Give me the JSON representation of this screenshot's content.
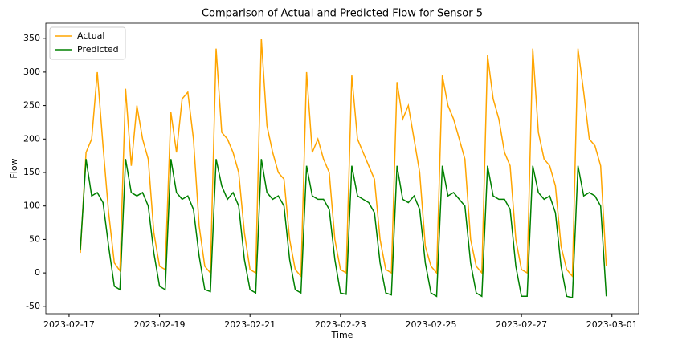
{
  "chart_data": {
    "type": "line",
    "title": "Comparison of Actual and Predicted Flow for Sensor 5",
    "xlabel": "Time",
    "ylabel": "Flow",
    "legend": "upper left",
    "x": [
      "2023-02-17 06:00",
      "2023-02-17 09:00",
      "2023-02-17 12:00",
      "2023-02-17 15:00",
      "2023-02-17 18:00",
      "2023-02-17 21:00",
      "2023-02-18 00:00",
      "2023-02-18 03:00",
      "2023-02-18 06:00",
      "2023-02-18 09:00",
      "2023-02-18 12:00",
      "2023-02-18 15:00",
      "2023-02-18 18:00",
      "2023-02-18 21:00",
      "2023-02-19 00:00",
      "2023-02-19 03:00",
      "2023-02-19 06:00",
      "2023-02-19 09:00",
      "2023-02-19 12:00",
      "2023-02-19 15:00",
      "2023-02-19 18:00",
      "2023-02-19 21:00",
      "2023-02-20 00:00",
      "2023-02-20 03:00",
      "2023-02-20 06:00",
      "2023-02-20 09:00",
      "2023-02-20 12:00",
      "2023-02-20 15:00",
      "2023-02-20 18:00",
      "2023-02-20 21:00",
      "2023-02-21 00:00",
      "2023-02-21 03:00",
      "2023-02-21 06:00",
      "2023-02-21 09:00",
      "2023-02-21 12:00",
      "2023-02-21 15:00",
      "2023-02-21 18:00",
      "2023-02-21 21:00",
      "2023-02-22 00:00",
      "2023-02-22 03:00",
      "2023-02-22 06:00",
      "2023-02-22 09:00",
      "2023-02-22 12:00",
      "2023-02-22 15:00",
      "2023-02-22 18:00",
      "2023-02-22 21:00",
      "2023-02-23 00:00",
      "2023-02-23 03:00",
      "2023-02-23 06:00",
      "2023-02-23 09:00",
      "2023-02-23 12:00",
      "2023-02-23 15:00",
      "2023-02-23 18:00",
      "2023-02-23 21:00",
      "2023-02-24 00:00",
      "2023-02-24 03:00",
      "2023-02-24 06:00",
      "2023-02-24 09:00",
      "2023-02-24 12:00",
      "2023-02-24 15:00",
      "2023-02-24 18:00",
      "2023-02-24 21:00",
      "2023-02-25 00:00",
      "2023-02-25 03:00",
      "2023-02-25 06:00",
      "2023-02-25 09:00",
      "2023-02-25 12:00",
      "2023-02-25 15:00",
      "2023-02-25 18:00",
      "2023-02-25 21:00",
      "2023-02-26 00:00",
      "2023-02-26 03:00",
      "2023-02-26 06:00",
      "2023-02-26 09:00",
      "2023-02-26 12:00",
      "2023-02-26 15:00",
      "2023-02-26 18:00",
      "2023-02-26 21:00",
      "2023-02-27 00:00",
      "2023-02-27 03:00",
      "2023-02-27 06:00",
      "2023-02-27 09:00",
      "2023-02-27 12:00",
      "2023-02-27 15:00",
      "2023-02-27 18:00",
      "2023-02-27 21:00",
      "2023-02-28 00:00",
      "2023-02-28 03:00",
      "2023-02-28 06:00",
      "2023-02-28 09:00",
      "2023-02-28 12:00",
      "2023-02-28 15:00",
      "2023-02-28 18:00",
      "2023-02-28 21:00"
    ],
    "series": [
      {
        "name": "Actual",
        "color": "orange",
        "values": [
          30,
          180,
          200,
          300,
          190,
          90,
          15,
          3,
          275,
          160,
          250,
          200,
          170,
          60,
          10,
          5,
          240,
          180,
          260,
          270,
          200,
          70,
          10,
          0,
          335,
          210,
          200,
          180,
          150,
          60,
          5,
          0,
          350,
          220,
          180,
          150,
          140,
          50,
          5,
          -5,
          300,
          180,
          200,
          170,
          150,
          50,
          5,
          0,
          295,
          200,
          180,
          160,
          140,
          50,
          5,
          0,
          285,
          230,
          250,
          200,
          150,
          40,
          10,
          0,
          295,
          250,
          230,
          200,
          170,
          50,
          10,
          0,
          325,
          260,
          230,
          180,
          160,
          50,
          5,
          0,
          335,
          210,
          170,
          160,
          130,
          40,
          5,
          -5,
          335,
          270,
          200,
          190,
          160,
          10
        ]
      },
      {
        "name": "Predicted",
        "color": "green",
        "values": [
          35,
          170,
          115,
          120,
          105,
          40,
          -20,
          -25,
          170,
          120,
          115,
          120,
          100,
          30,
          -20,
          -25,
          170,
          120,
          110,
          115,
          95,
          25,
          -25,
          -28,
          170,
          130,
          110,
          120,
          100,
          20,
          -25,
          -30,
          170,
          120,
          110,
          115,
          100,
          20,
          -25,
          -30,
          160,
          115,
          110,
          110,
          95,
          20,
          -30,
          -32,
          160,
          115,
          110,
          105,
          90,
          15,
          -30,
          -33,
          160,
          110,
          105,
          115,
          95,
          15,
          -30,
          -35,
          160,
          115,
          120,
          110,
          100,
          15,
          -30,
          -35,
          160,
          115,
          110,
          110,
          95,
          10,
          -35,
          -35,
          160,
          120,
          110,
          115,
          90,
          10,
          -35,
          -37,
          160,
          115,
          120,
          115,
          100,
          -35
        ]
      }
    ],
    "xlim": [
      "2023-02-16 11:40",
      "2023-03-01 14:10"
    ],
    "xticks": [
      "2023-02-17",
      "2023-02-19",
      "2023-02-21",
      "2023-02-23",
      "2023-02-25",
      "2023-02-27",
      "2023-03-01"
    ],
    "ylim": [
      -61,
      373
    ],
    "yticks": [
      -50,
      0,
      50,
      100,
      150,
      200,
      250,
      300,
      350
    ]
  }
}
